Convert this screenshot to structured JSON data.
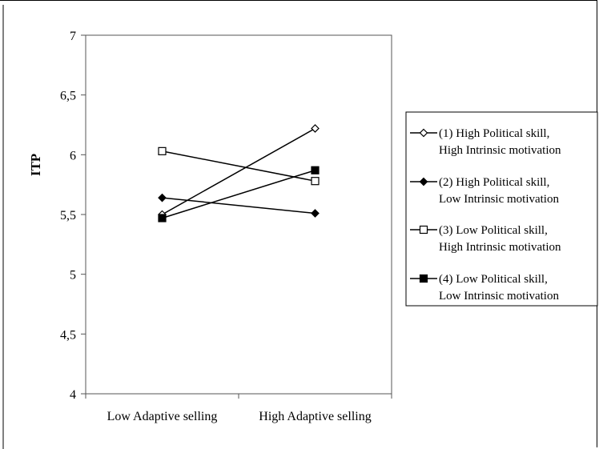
{
  "chart_data": {
    "type": "line",
    "title": "",
    "xlabel": "",
    "ylabel": "ITP",
    "categories": [
      "Low Adaptive selling",
      "High Adaptive selling"
    ],
    "ylim": [
      4,
      7
    ],
    "yticks": [
      "4",
      "4,5",
      "5",
      "5,5",
      "6",
      "6,5",
      "7"
    ],
    "ytick_values": [
      4,
      4.5,
      5,
      5.5,
      6,
      6.5,
      7
    ],
    "grid": false,
    "legend_position": "right",
    "series": [
      {
        "name_line1": "(1) High Political skill,",
        "name_line2": "High Intrinsic motivation",
        "values": [
          5.5,
          6.22
        ],
        "marker": "diamond-open"
      },
      {
        "name_line1": "(2) High Political skill,",
        "name_line2": "Low Intrinsic motivation",
        "values": [
          5.64,
          5.51
        ],
        "marker": "diamond-filled"
      },
      {
        "name_line1": "(3) Low Political skill,",
        "name_line2": "High Intrinsic motivation",
        "values": [
          6.03,
          5.78
        ],
        "marker": "square-open"
      },
      {
        "name_line1": "(4) Low Political skill,",
        "name_line2": "Low Intrinsic motivation",
        "values": [
          5.47,
          5.87
        ],
        "marker": "square-filled"
      }
    ]
  }
}
